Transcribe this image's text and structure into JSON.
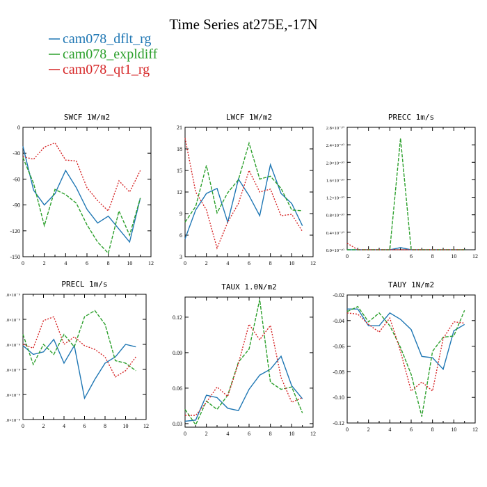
{
  "figure": {
    "title": "Time Series at275E,-17N",
    "legend": [
      {
        "name": "cam078_dflt_rg",
        "color": "#1f77b4"
      },
      {
        "name": "cam078_expldiff",
        "color": "#2ca02c"
      },
      {
        "name": "cam078_qt1_rg",
        "color": "#d62728"
      }
    ]
  },
  "chart_data": [
    {
      "type": "line",
      "title": "SWCF   1W/m2",
      "x": [
        0,
        1,
        2,
        3,
        4,
        5,
        6,
        7,
        8,
        9,
        10,
        11
      ],
      "xlim": [
        0,
        12
      ],
      "xticks": [
        "0",
        "2",
        "4",
        "6",
        "8",
        "10",
        "12"
      ],
      "ylim": [
        -150,
        0
      ],
      "yticks": [
        "-150",
        "-120",
        "-90",
        "-60",
        "-30",
        "0"
      ],
      "series": [
        {
          "name": "cam078_dflt_rg",
          "values": [
            -22,
            -73,
            -90,
            -77,
            -50,
            -70,
            -95,
            -111,
            -103,
            -118,
            -133,
            -82
          ]
        },
        {
          "name": "cam078_expldiff",
          "values": [
            -35,
            -65,
            -114,
            -72,
            -78,
            -88,
            -113,
            -133,
            -146,
            -97,
            -125,
            -82
          ]
        },
        {
          "name": "cam078_qt1_rg",
          "values": [
            -34,
            -37,
            -23,
            -18,
            -38,
            -39,
            -70,
            -85,
            -97,
            -62,
            -75,
            -50
          ]
        }
      ]
    },
    {
      "type": "line",
      "title": "LWCF   1W/m2",
      "x": [
        0,
        1,
        2,
        3,
        4,
        5,
        6,
        7,
        8,
        9,
        10,
        11
      ],
      "xlim": [
        0,
        12
      ],
      "xticks": [
        "0",
        "2",
        "4",
        "6",
        "8",
        "10",
        "12"
      ],
      "ylim": [
        3,
        21
      ],
      "yticks": [
        "3",
        "6",
        "9",
        "12",
        "15",
        "18",
        "21"
      ],
      "series": [
        {
          "name": "cam078_dflt_rg",
          "values": [
            5.5,
            9.5,
            11.8,
            12.5,
            7.8,
            13.8,
            11.5,
            8.7,
            15.8,
            11.8,
            10.4,
            7.3
          ]
        },
        {
          "name": "cam078_expldiff",
          "values": [
            7.8,
            10.0,
            15.7,
            9.1,
            11.9,
            13.7,
            18.8,
            13.8,
            14.2,
            12.5,
            9.5,
            9.4
          ]
        },
        {
          "name": "cam078_qt1_rg",
          "values": [
            19.5,
            12.0,
            9.5,
            4.2,
            7.8,
            10.4,
            15.0,
            12.0,
            12.4,
            8.7,
            8.9,
            6.5
          ]
        }
      ]
    },
    {
      "type": "line",
      "title": "PRECC   1m/s",
      "x": [
        0,
        1,
        2,
        3,
        4,
        5,
        6,
        7,
        8,
        9,
        10,
        11
      ],
      "xlim": [
        0,
        12
      ],
      "xticks": [
        "0",
        "2",
        "4",
        "6",
        "8",
        "10",
        "12"
      ],
      "ylim": [
        0,
        2.8
      ],
      "yticks": [
        "0.0×10⁻¹⁰",
        "0.4×10⁻¹⁰",
        "0.8×10⁻¹⁰",
        "1.2×10⁻¹⁰",
        "1.6×10⁻¹⁰",
        "2.0×10⁻¹⁰",
        "2.4×10⁻¹⁰",
        "2.8×10⁻¹⁰"
      ],
      "series": [
        {
          "name": "cam078_dflt_rg",
          "values": [
            0,
            0,
            0,
            0,
            0,
            0.05,
            0,
            0,
            0,
            0,
            0,
            0
          ]
        },
        {
          "name": "cam078_expldiff",
          "values": [
            0,
            0,
            0,
            0,
            0,
            2.55,
            0,
            0,
            0,
            0,
            0,
            0
          ]
        },
        {
          "name": "cam078_qt1_rg",
          "values": [
            0.15,
            0,
            0,
            0,
            0,
            0,
            0,
            0,
            0,
            0,
            0,
            0
          ]
        }
      ]
    },
    {
      "type": "line",
      "title": "PRECL   1m/s",
      "x": [
        0,
        1,
        2,
        3,
        4,
        5,
        6,
        7,
        8,
        9,
        10,
        11
      ],
      "xlim": [
        0,
        12
      ],
      "xticks": [
        "0",
        "2",
        "4",
        "6",
        "8",
        "10",
        "12"
      ],
      "ylim": [
        0,
        5
      ],
      "yticks": [
        ".0×10⁻⁹",
        ".0×10⁻⁹",
        ".0×10⁻⁹",
        ".0×10⁻⁹",
        ".0×10⁻⁹",
        ".0×10⁻⁹"
      ],
      "series": [
        {
          "name": "cam078_dflt_rg",
          "values": [
            2.95,
            2.6,
            2.7,
            3.2,
            2.25,
            2.95,
            0.85,
            1.6,
            2.25,
            2.5,
            3.0,
            2.9
          ]
        },
        {
          "name": "cam078_expldiff",
          "values": [
            3.4,
            2.2,
            3.0,
            2.6,
            3.4,
            2.9,
            4.1,
            4.35,
            3.8,
            2.35,
            2.25,
            1.95
          ]
        },
        {
          "name": "cam078_qt1_rg",
          "values": [
            3.0,
            2.85,
            3.95,
            4.1,
            3.0,
            3.3,
            2.95,
            2.8,
            2.5,
            1.7,
            1.95,
            2.5
          ]
        }
      ]
    },
    {
      "type": "line",
      "title": "TAUX   1.0N/m2",
      "x": [
        0,
        1,
        2,
        3,
        4,
        5,
        6,
        7,
        8,
        9,
        10,
        11
      ],
      "xlim": [
        0,
        12
      ],
      "xticks": [
        "0",
        "2",
        "4",
        "6",
        "8",
        "10",
        "12"
      ],
      "ylim": [
        0.027,
        0.137
      ],
      "yticks": [
        "0.03",
        "0.06",
        "0.09",
        "0.12"
      ],
      "series": [
        {
          "name": "cam078_dflt_rg",
          "values": [
            0.032,
            0.033,
            0.054,
            0.052,
            0.043,
            0.041,
            0.059,
            0.071,
            0.076,
            0.087,
            0.062,
            0.051
          ]
        },
        {
          "name": "cam078_expldiff",
          "values": [
            0.042,
            0.029,
            0.049,
            0.042,
            0.054,
            0.082,
            0.093,
            0.135,
            0.065,
            0.059,
            0.061,
            0.039
          ]
        },
        {
          "name": "cam078_qt1_rg",
          "values": [
            0.037,
            0.037,
            0.048,
            0.061,
            0.053,
            0.081,
            0.114,
            0.101,
            0.113,
            0.069,
            0.048,
            0.052
          ]
        }
      ]
    },
    {
      "type": "line",
      "title": "TAUY   1N/m2",
      "x": [
        0,
        1,
        2,
        3,
        4,
        5,
        6,
        7,
        8,
        9,
        10,
        11
      ],
      "xlim": [
        0,
        12
      ],
      "xticks": [
        "0",
        "2",
        "4",
        "6",
        "8",
        "10",
        "12"
      ],
      "ylim": [
        -0.12,
        -0.02
      ],
      "yticks": [
        "-0.12",
        "-0.10",
        "-0.08",
        "-0.06",
        "-0.04",
        "-0.02"
      ],
      "series": [
        {
          "name": "cam078_dflt_rg",
          "values": [
            -0.031,
            -0.031,
            -0.044,
            -0.044,
            -0.034,
            -0.039,
            -0.047,
            -0.068,
            -0.069,
            -0.078,
            -0.048,
            -0.043
          ]
        },
        {
          "name": "cam078_expldiff",
          "values": [
            -0.033,
            -0.029,
            -0.041,
            -0.034,
            -0.044,
            -0.061,
            -0.082,
            -0.115,
            -0.064,
            -0.053,
            -0.052,
            -0.032
          ]
        },
        {
          "name": "cam078_qt1_rg",
          "values": [
            -0.034,
            -0.035,
            -0.043,
            -0.049,
            -0.038,
            -0.064,
            -0.095,
            -0.088,
            -0.095,
            -0.054,
            -0.041,
            -0.042
          ]
        }
      ]
    }
  ]
}
